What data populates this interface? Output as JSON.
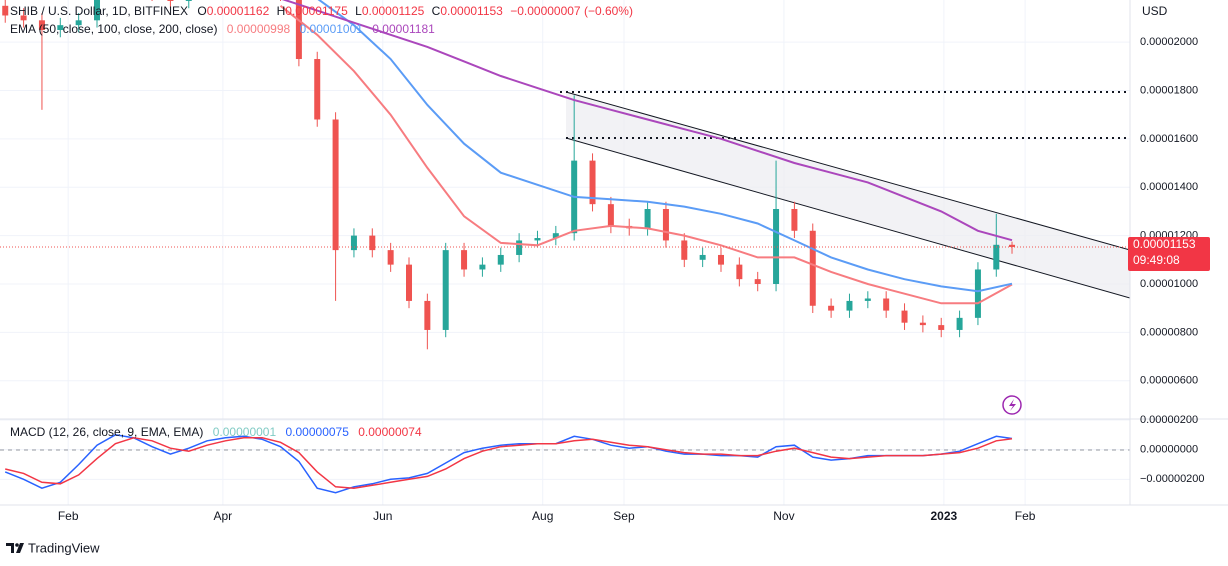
{
  "chart_data": {
    "type": "candlestick",
    "title": "SHIB / U.S. Dollar, 1D, BITFINEX",
    "ohlc_labels": [
      "O",
      "H",
      "L",
      "C"
    ],
    "change": "−0.00000007 (−0.60%)",
    "y_unit": "USD",
    "countdown": "09:49:08",
    "brand": "TradingView",
    "up_color": "#26a69a",
    "down_color": "#ef5350",
    "grid": true,
    "x": [
      7,
      14,
      21,
      28,
      35,
      42,
      49,
      56,
      63,
      70,
      77,
      84,
      91,
      98,
      105,
      112,
      119,
      126,
      133,
      140,
      147,
      154,
      161,
      168,
      175,
      182,
      189,
      196,
      203,
      210,
      217,
      224,
      231,
      238,
      245,
      252,
      259,
      266,
      273,
      280,
      287,
      294,
      301,
      308,
      315,
      322,
      329,
      336,
      343,
      350,
      357,
      364,
      371,
      378,
      385,
      391
    ],
    "open": [
      2.15e-05,
      2.11e-05,
      2.09e-05,
      2.05e-05,
      2.07e-05,
      2.09e-05,
      2.25e-05,
      2.3e-05,
      2.25e-05,
      2.2e-05,
      2.17e-05,
      2.25e-05,
      2.3e-05,
      2.3e-05,
      2.35e-05,
      2.3e-05,
      2.2e-05,
      1.93e-05,
      1.68e-05,
      1.14e-05,
      1.2e-05,
      1.14e-05,
      1.08e-05,
      9.3e-06,
      8.1e-06,
      1.14e-05,
      1.06e-05,
      1.08e-05,
      1.12e-05,
      1.18e-05,
      1.19e-05,
      1.21e-05,
      1.51e-05,
      1.33e-05,
      1.24e-05,
      1.23e-05,
      1.31e-05,
      1.18e-05,
      1.1e-05,
      1.12e-05,
      1.08e-05,
      1.02e-05,
      1e-05,
      1.31e-05,
      1.22e-05,
      9.1e-06,
      8.9e-06,
      9.3e-06,
      9.4e-06,
      8.9e-06,
      8.4e-06,
      8.3e-06,
      8.1e-06,
      8.6e-06,
      1.06e-05,
      1.162e-05
    ],
    "high": [
      2.18e-05,
      2.14e-05,
      2.12e-05,
      2.1e-05,
      2.12e-05,
      2.28e-05,
      2.33e-05,
      2.33e-05,
      2.28e-05,
      2.23e-05,
      2.28e-05,
      2.33e-05,
      2.33e-05,
      2.38e-05,
      2.38e-05,
      2.33e-05,
      2.23e-05,
      1.96e-05,
      1.71e-05,
      1.23e-05,
      1.23e-05,
      1.17e-05,
      1.11e-05,
      9.6e-06,
      1.17e-05,
      1.17e-05,
      1.11e-05,
      1.15e-05,
      1.21e-05,
      1.22e-05,
      1.24e-05,
      1.78e-05,
      1.54e-05,
      1.36e-05,
      1.27e-05,
      1.34e-05,
      1.34e-05,
      1.21e-05,
      1.15e-05,
      1.15e-05,
      1.11e-05,
      1.05e-05,
      1.51e-05,
      1.34e-05,
      1.25e-05,
      9.4e-06,
      9.6e-06,
      9.7e-06,
      9.7e-06,
      9.2e-06,
      8.7e-06,
      8.6e-06,
      8.9e-06,
      1.09e-05,
      1.29e-05,
      1.175e-05
    ],
    "low": [
      2.08e-05,
      2.06e-05,
      1.72e-05,
      2.02e-05,
      2.04e-05,
      2.06e-05,
      2.22e-05,
      2.22e-05,
      2.17e-05,
      2.14e-05,
      2.14e-05,
      2.22e-05,
      2.27e-05,
      2.27e-05,
      2.27e-05,
      2.17e-05,
      1.9e-05,
      1.65e-05,
      9.3e-06,
      1.11e-05,
      1.11e-05,
      1.05e-05,
      9e-06,
      7.3e-06,
      7.8e-06,
      1.03e-05,
      1.03e-05,
      1.05e-05,
      1.09e-05,
      1.15e-05,
      1.16e-05,
      1.18e-05,
      1.3e-05,
      1.21e-05,
      1.2e-05,
      1.2e-05,
      1.15e-05,
      1.07e-05,
      1.07e-05,
      1.05e-05,
      9.9e-06,
      9.7e-06,
      9.7e-06,
      1.19e-05,
      8.8e-06,
      8.6e-06,
      8.6e-06,
      9e-06,
      8.6e-06,
      8.1e-06,
      8e-06,
      7.8e-06,
      7.8e-06,
      8.3e-06,
      1.03e-05,
      1.125e-05
    ],
    "close": [
      2.11e-05,
      2.09e-05,
      2.05e-05,
      2.07e-05,
      2.09e-05,
      2.25e-05,
      2.3e-05,
      2.25e-05,
      2.2e-05,
      2.17e-05,
      2.25e-05,
      2.3e-05,
      2.3e-05,
      2.35e-05,
      2.3e-05,
      2.2e-05,
      1.93e-05,
      1.68e-05,
      1.14e-05,
      1.2e-05,
      1.14e-05,
      1.08e-05,
      9.3e-06,
      8.1e-06,
      1.14e-05,
      1.06e-05,
      1.08e-05,
      1.12e-05,
      1.18e-05,
      1.19e-05,
      1.21e-05,
      1.51e-05,
      1.33e-05,
      1.24e-05,
      1.23e-05,
      1.31e-05,
      1.18e-05,
      1.1e-05,
      1.12e-05,
      1.08e-05,
      1.02e-05,
      1e-05,
      1.31e-05,
      1.22e-05,
      9.1e-06,
      8.9e-06,
      9.3e-06,
      9.4e-06,
      8.9e-06,
      8.4e-06,
      8.3e-06,
      8.1e-06,
      8.6e-06,
      1.06e-05,
      1.162e-05,
      1.153e-05
    ],
    "xlim": [
      5,
      436
    ],
    "xticks": [
      {
        "value": 31,
        "label": "Feb"
      },
      {
        "value": 90,
        "label": "Apr"
      },
      {
        "value": 151,
        "label": "Jun"
      },
      {
        "value": 212,
        "label": "Aug"
      },
      {
        "value": 243,
        "label": "Sep"
      },
      {
        "value": 304,
        "label": "Nov"
      },
      {
        "value": 365,
        "label": "2023"
      },
      {
        "value": 396,
        "label": "Feb"
      }
    ],
    "ylim": [
      4.46e-06,
      2.174e-05
    ],
    "yticks": [
      {
        "value": 6e-06,
        "label": "0.00000600"
      },
      {
        "value": 8e-06,
        "label": "0.00000800"
      },
      {
        "value": 1e-05,
        "label": "0.00001000"
      },
      {
        "value": 1.2e-05,
        "label": "0.00001200"
      },
      {
        "value": 1.4e-05,
        "label": "0.00001400"
      },
      {
        "value": 1.6e-05,
        "label": "0.00001600"
      },
      {
        "value": 1.8e-05,
        "label": "0.00001800"
      },
      {
        "value": 2e-05,
        "label": "0.00002000"
      }
    ],
    "ema": {
      "label": "EMA (50, close, 100, close, 200, close)",
      "x": [
        112,
        126,
        140,
        154,
        168,
        182,
        196,
        210,
        224,
        238,
        252,
        266,
        280,
        294,
        308,
        322,
        336,
        350,
        364,
        378,
        391
      ],
      "series": [
        {
          "color": "#f77c80",
          "values": [
            2.15e-05,
            2.03e-05,
            1.88e-05,
            1.7e-05,
            1.48e-05,
            1.28e-05,
            1.17e-05,
            1.16e-05,
            1.22e-05,
            1.24e-05,
            1.23e-05,
            1.2e-05,
            1.16e-05,
            1.11e-05,
            1.11e-05,
            1.05e-05,
            1e-05,
            9.6e-06,
            9.2e-06,
            9.2e-06,
            9.98e-06
          ]
        },
        {
          "color": "#5b9cf6",
          "values": [
            2.3e-05,
            2.18e-05,
            2.07e-05,
            1.93e-05,
            1.74e-05,
            1.58e-05,
            1.46e-05,
            1.41e-05,
            1.36e-05,
            1.35e-05,
            1.34e-05,
            1.32e-05,
            1.29e-05,
            1.25e-05,
            1.18e-05,
            1.11e-05,
            1.06e-05,
            1.02e-05,
            9.9e-06,
            9.7e-06,
            1.001e-05
          ]
        },
        {
          "color": "#ab47bc",
          "values": [
            2.18e-05,
            2.13e-05,
            2.08e-05,
            2.03e-05,
            1.98e-05,
            1.92e-05,
            1.86e-05,
            1.81e-05,
            1.76e-05,
            1.72e-05,
            1.68e-05,
            1.64e-05,
            1.6e-05,
            1.55e-05,
            1.5e-05,
            1.46e-05,
            1.42e-05,
            1.36e-05,
            1.3e-05,
            1.22e-05,
            1.181e-05
          ]
        }
      ]
    },
    "macd": {
      "label": "MACD (12, 26, close, 9, EMA, EMA)",
      "histogram_label": "0.00000001",
      "histogram_color": "#80cbc4",
      "ylim": [
        -3.73e-06,
        2e-06
      ],
      "yticks": [
        {
          "value": -2e-06,
          "label": "−0.00000200"
        },
        {
          "value": 0,
          "label": "0.00000000"
        },
        {
          "value": 2e-06,
          "label": "0.00000200"
        }
      ],
      "series": [
        {
          "color": "#2962ff",
          "value_label": "0.00000075",
          "values": [
            -1.5e-06,
            -2e-06,
            -2.6e-06,
            -2.2e-06,
            -1e-06,
            3e-07,
            1e-06,
            8e-07,
            2e-07,
            -3e-07,
            1e-07,
            6e-07,
            8e-07,
            9e-07,
            7e-07,
            2e-07,
            -8e-07,
            -2.6e-06,
            -2.9e-06,
            -2.5e-06,
            -2.3e-06,
            -2e-06,
            -1.9e-06,
            -1.6e-06,
            -9e-07,
            -2e-07,
            1e-07,
            3e-07,
            4e-07,
            4e-07,
            4e-07,
            9e-07,
            7e-07,
            3e-07,
            1e-07,
            2e-07,
            -1e-07,
            -3e-07,
            -3e-07,
            -4e-07,
            -4e-07,
            -5e-07,
            2e-07,
            3e-07,
            -5e-07,
            -7e-07,
            -6e-07,
            -4e-07,
            -4e-07,
            -4e-07,
            -4e-07,
            -3e-07,
            -1e-07,
            4e-07,
            9e-07,
            7.5e-07
          ]
        },
        {
          "color": "#f23645",
          "value_label": "0.00000074",
          "values": [
            -1.3e-06,
            -1.6e-06,
            -2.2e-06,
            -2.3e-06,
            -1.7e-06,
            -6e-07,
            4e-07,
            8e-07,
            6e-07,
            1e-07,
            -1e-07,
            3e-07,
            6e-07,
            8e-07,
            8e-07,
            5e-07,
            -2e-07,
            -1.5e-06,
            -2.5e-06,
            -2.6e-06,
            -2.4e-06,
            -2.2e-06,
            -2e-06,
            -1.8e-06,
            -1.3e-06,
            -6e-07,
            -1e-07,
            2e-07,
            3e-07,
            4e-07,
            4e-07,
            6e-07,
            7e-07,
            5e-07,
            3e-07,
            2e-07,
            0,
            -2e-07,
            -3e-07,
            -3e-07,
            -4e-07,
            -4e-07,
            -1e-07,
            1e-07,
            -2e-07,
            -5e-07,
            -6e-07,
            -5e-07,
            -4e-07,
            -4e-07,
            -4e-07,
            -3e-07,
            -2e-07,
            1e-07,
            6e-07,
            7.4e-07
          ]
        }
      ]
    }
  }
}
